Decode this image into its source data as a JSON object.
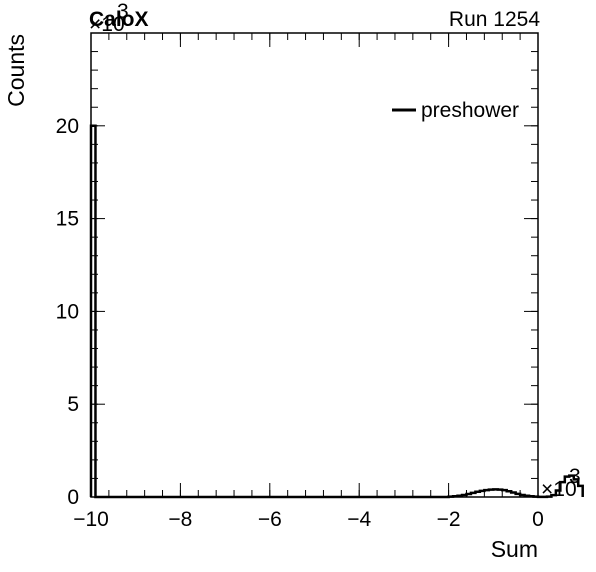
{
  "header": {
    "experiment": "CaloX",
    "run": "Run 1254"
  },
  "legend": {
    "entries": [
      "preshower"
    ]
  },
  "chart_data": {
    "type": "histogram",
    "title": "",
    "xlabel": "Sum",
    "ylabel": "Counts",
    "x_multiplier_label": "×10",
    "x_multiplier_exp": "3",
    "y_multiplier_label": "×10",
    "y_multiplier_exp": "3",
    "xlim": [
      -10,
      0
    ],
    "ylim": [
      0,
      25
    ],
    "x_ticks": [
      -10,
      -8,
      -6,
      -4,
      -2,
      0
    ],
    "x_tick_labels": [
      "−10",
      "−8",
      "−6",
      "−4",
      "−2",
      "0"
    ],
    "y_ticks": [
      0,
      5,
      10,
      15,
      20
    ],
    "y_tick_labels": [
      "0",
      "5",
      "10",
      "15",
      "20"
    ],
    "legend_position": "top-right",
    "grid": false,
    "series": [
      {
        "name": "preshower",
        "color": "#000000",
        "bin_width": 0.1,
        "x_start": -10,
        "values": [
          20,
          0,
          0,
          0,
          0,
          0,
          0,
          0,
          0,
          0,
          0,
          0,
          0,
          0,
          0,
          0,
          0,
          0,
          0,
          0,
          0,
          0,
          0,
          0,
          0,
          0,
          0,
          0,
          0,
          0,
          0,
          0,
          0,
          0,
          0,
          0,
          0,
          0,
          0,
          0,
          0,
          0,
          0,
          0,
          0,
          0,
          0,
          0,
          0,
          0,
          0,
          0,
          0,
          0,
          0,
          0,
          0,
          0,
          0,
          0,
          0,
          0,
          0,
          0,
          0,
          0,
          0,
          0,
          0,
          0,
          0,
          0,
          0,
          0,
          0,
          0,
          0,
          0,
          0,
          0,
          0.02,
          0.04,
          0.07,
          0.11,
          0.16,
          0.22,
          0.28,
          0.33,
          0.37,
          0.4,
          0.41,
          0.4,
          0.37,
          0.31,
          0.24,
          0.17,
          0.11,
          0.07,
          0.04,
          0.02,
          0.01,
          0.01,
          0.02,
          0.1,
          0.35,
          0.8,
          1.1,
          1.15,
          0.95,
          0.6
        ]
      }
    ]
  }
}
